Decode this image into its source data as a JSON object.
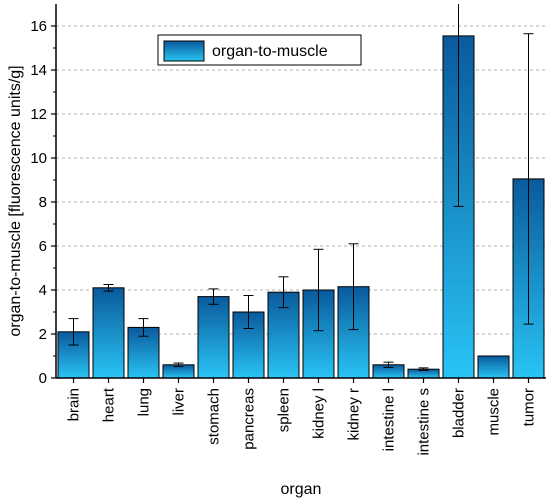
{
  "chart_data": {
    "type": "bar",
    "categories": [
      "brain",
      "heart",
      "lung",
      "liver",
      "stomach",
      "pancreas",
      "spleen",
      "kidney l",
      "kidney r",
      "intestine l",
      "intestine s",
      "bladder",
      "muscle",
      "tumor"
    ],
    "series": [
      {
        "name": "organ-to-muscle",
        "values": [
          2.1,
          4.1,
          2.3,
          0.6,
          3.7,
          3.0,
          3.9,
          4.0,
          4.15,
          0.6,
          0.4,
          15.55,
          1.0,
          9.05
        ],
        "errors": [
          0.6,
          0.15,
          0.4,
          0.08,
          0.35,
          0.75,
          0.7,
          1.85,
          1.95,
          0.12,
          0.06,
          7.75,
          0.0,
          6.6
        ]
      }
    ],
    "xlabel": "organ",
    "ylabel": "organ-to-muscle [fluorescence units/g]",
    "ylim": [
      0,
      17
    ],
    "yticks": [
      "0",
      "2",
      "4",
      "6",
      "8",
      "10",
      "12",
      "14",
      "16"
    ],
    "grid": "horizontal dashed",
    "legend_position": "top-center",
    "colors": {
      "bar_top": "#0a5a9c",
      "bar_bottom": "#29c4f4",
      "grid": "#b0b0b0"
    }
  }
}
